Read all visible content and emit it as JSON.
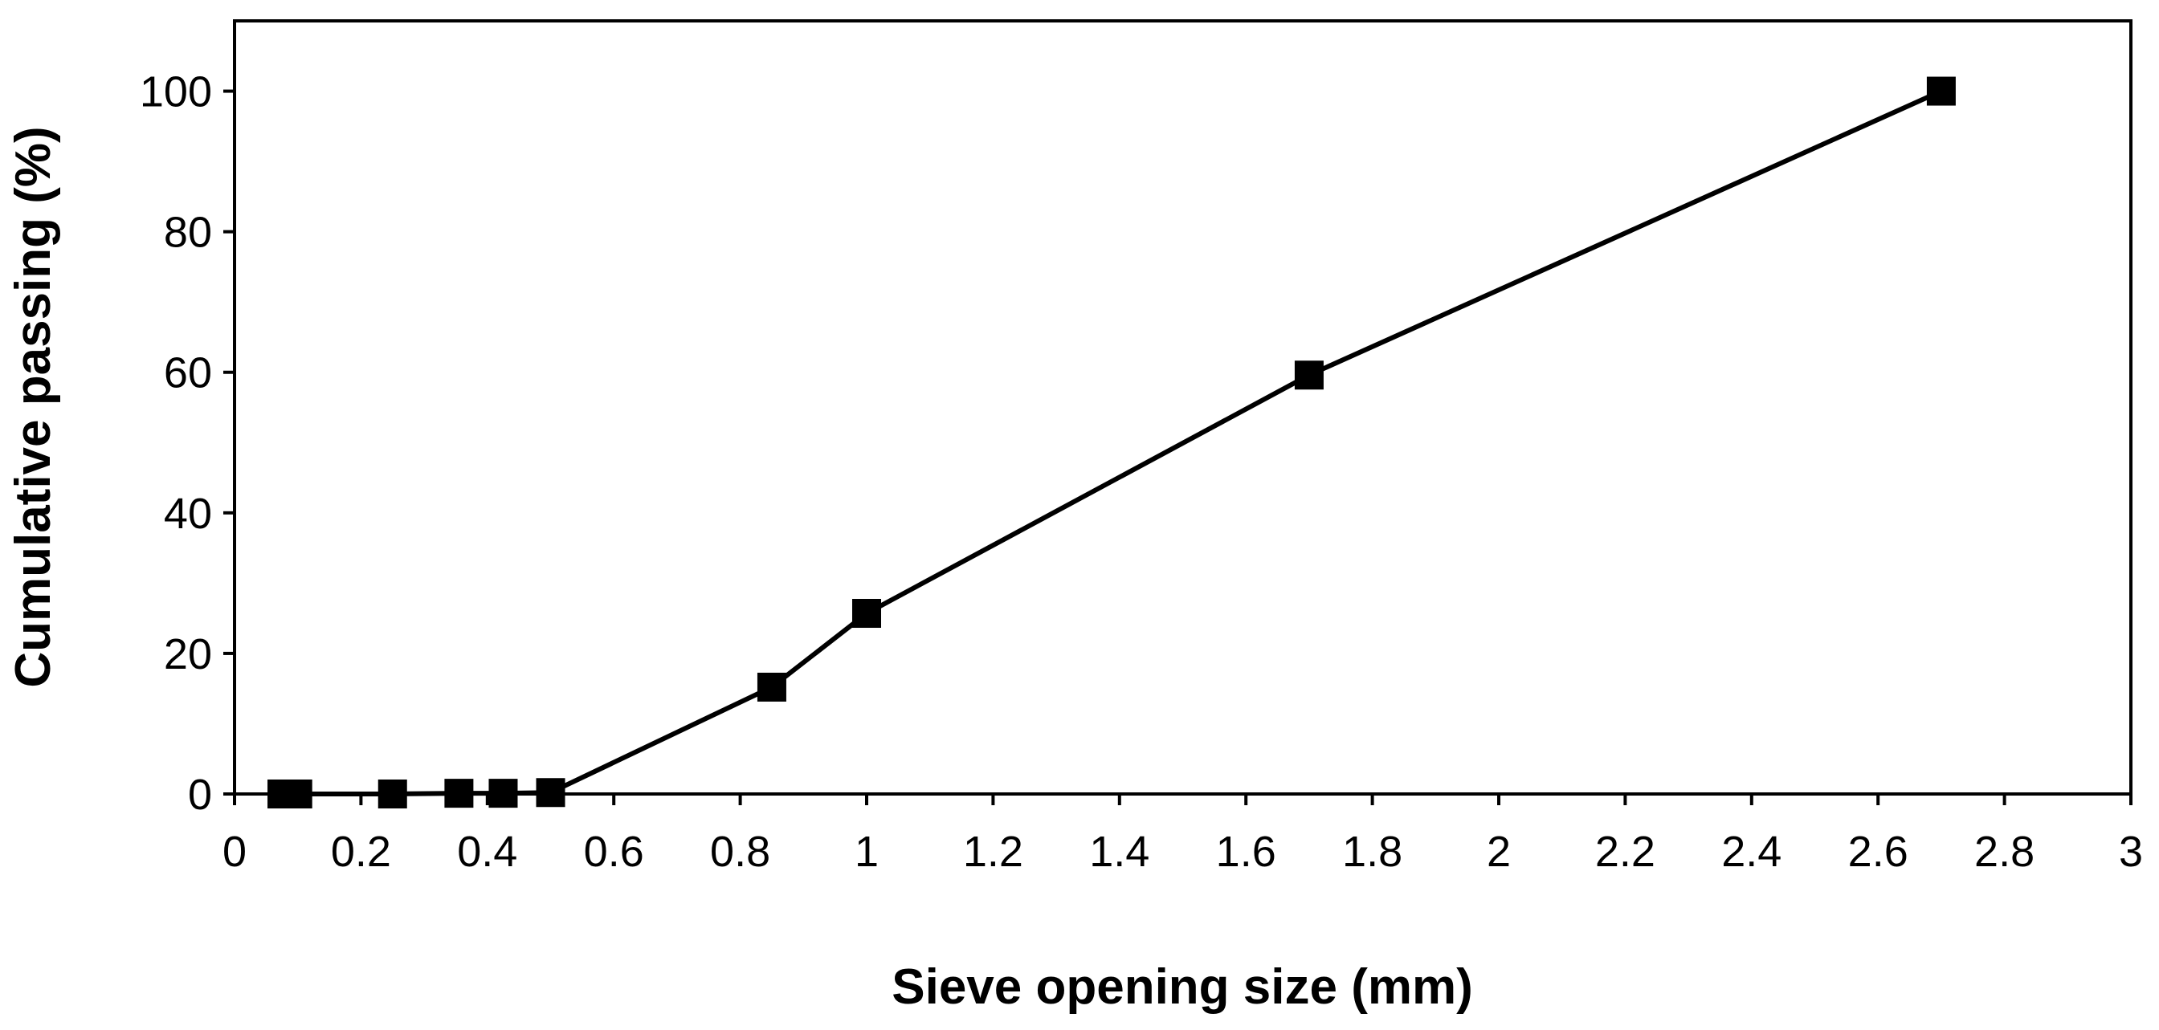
{
  "chart_data": {
    "type": "line",
    "title": "",
    "xlabel": "Sieve opening size (mm)",
    "ylabel": "Cumulative passing (%)",
    "xlim": [
      0,
      3
    ],
    "ylim": [
      0,
      110
    ],
    "x_ticks": [
      0,
      0.2,
      0.4,
      0.6,
      0.8,
      1,
      1.2,
      1.4,
      1.6,
      1.8,
      2,
      2.2,
      2.4,
      2.6,
      2.8,
      3
    ],
    "x_tick_labels": [
      "0",
      "0.2",
      "0.4",
      "0.6",
      "0.8",
      "1",
      "1.2",
      "1.4",
      "1.6",
      "1.8",
      "2",
      "2.2",
      "2.4",
      "2.6",
      "2.8",
      "3"
    ],
    "y_ticks": [
      0,
      20,
      40,
      60,
      80,
      100
    ],
    "y_tick_labels": [
      "0",
      "20",
      "40",
      "60",
      "80",
      "100"
    ],
    "grid": false,
    "legend": "none",
    "marker": "square",
    "series": [
      {
        "color": "#000000",
        "x": [
          0.075,
          0.1,
          0.25,
          0.355,
          0.425,
          0.5,
          0.85,
          1.0,
          1.7,
          2.7
        ],
        "y": [
          0,
          0,
          0,
          0.1,
          0.1,
          0.2,
          15.2,
          25.7,
          59.6,
          100
        ]
      }
    ]
  }
}
